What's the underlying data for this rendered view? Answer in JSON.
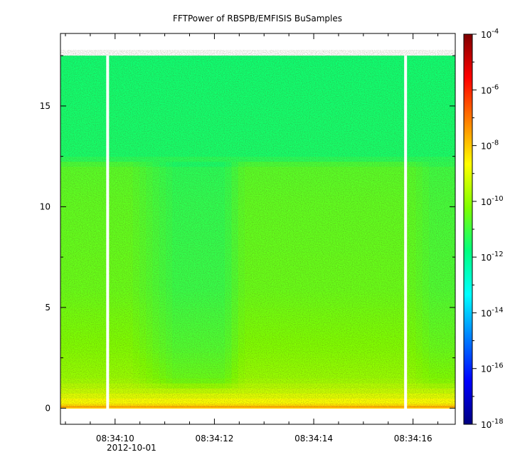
{
  "chart_data": {
    "type": "heatmap",
    "title": "FFTPower of RBSPB/EMFISIS  BuSamples",
    "x_axis": {
      "type": "time",
      "date_label": "2012-10-01",
      "ticks": [
        "08:34:10",
        "08:34:12",
        "08:34:14",
        "08:34:16"
      ],
      "minor_ticks_per_major": 3,
      "range_seconds": [
        8.9,
        16.85
      ]
    },
    "y_axis": {
      "range": [
        -0.8,
        18.6
      ],
      "ticks": [
        0,
        5,
        10,
        15
      ],
      "tick_labels": [
        "0",
        "5",
        "10",
        "15"
      ],
      "minor_ticks": [
        2.5,
        7.5,
        12.5,
        17.5
      ]
    },
    "colorbar": {
      "scale": "log",
      "range": [
        -18,
        -4
      ],
      "ticks": [
        {
          "exp": -4,
          "base": "10",
          "sup": "-4"
        },
        {
          "exp": -6,
          "base": "10",
          "sup": "-6"
        },
        {
          "exp": -8,
          "base": "10",
          "sup": "-8"
        },
        {
          "exp": -10,
          "base": "10",
          "sup": "-10"
        },
        {
          "exp": -12,
          "base": "10",
          "sup": "-12"
        },
        {
          "exp": -14,
          "base": "10",
          "sup": "-14"
        },
        {
          "exp": -16,
          "base": "10",
          "sup": "-16"
        },
        {
          "exp": -18,
          "base": "10",
          "sup": "-18"
        }
      ]
    },
    "data_extent": {
      "y_min": 0,
      "y_max": 17.5
    },
    "gaps_seconds": [
      9.85,
      15.85
    ],
    "regions": [
      {
        "t_start": 8.9,
        "t_end": 10.3,
        "y_top": 12.2,
        "level": "high"
      },
      {
        "t_start": 10.3,
        "t_end": 11.2,
        "y_top": 12.2,
        "level": "transition"
      },
      {
        "t_start": 11.2,
        "t_end": 12.6,
        "y_top": 1.3,
        "level": "low"
      },
      {
        "t_start": 12.6,
        "t_end": 15.6,
        "y_top": 12.2,
        "level": "high"
      }
    ],
    "spectral_background": [
      {
        "y": 0.0,
        "log_power": -8.2
      },
      {
        "y": 0.3,
        "log_power": -8.6
      },
      {
        "y": 0.8,
        "log_power": -9.3
      },
      {
        "y": 1.5,
        "log_power": -9.9
      },
      {
        "y": 3.0,
        "log_power": -10.2
      },
      {
        "y": 6.0,
        "log_power": -10.5
      },
      {
        "y": 10.0,
        "log_power": -10.6
      },
      {
        "y": 12.0,
        "log_power": -10.7
      },
      {
        "y": 12.5,
        "log_power": -11.5
      },
      {
        "y": 17.5,
        "log_power": -11.6
      }
    ],
    "colors": {
      "frame": "#000000",
      "gap": "#ffffff",
      "colormap": [
        "#00007f",
        "#0000ff",
        "#007fff",
        "#00ffff",
        "#00ff7f",
        "#7fff00",
        "#ffff00",
        "#ff7f00",
        "#ff0000",
        "#7f0000"
      ]
    }
  }
}
